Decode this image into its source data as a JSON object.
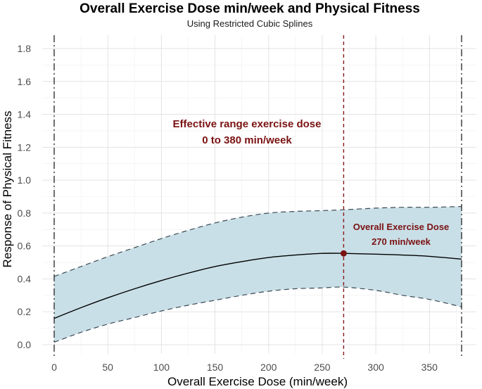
{
  "chart_data": {
    "type": "line",
    "title": "Overall Exercise Dose min/week and Physical Fitness",
    "subtitle": "Using Restricted Cubic Splines",
    "xlabel": "Overall Exercise Dose (min/week)",
    "ylabel": "Response of Physical Fitness",
    "xlim": [
      0,
      380
    ],
    "ylim": [
      0,
      1.8
    ],
    "x_ticks": [
      0,
      50,
      100,
      150,
      200,
      250,
      300,
      350
    ],
    "x_tick_labels": [
      "0",
      "50",
      "100",
      "150",
      "200",
      "250",
      "300",
      "350"
    ],
    "y_ticks": [
      0.0,
      0.2,
      0.4,
      0.6,
      0.8,
      1.0,
      1.2,
      1.4,
      1.6,
      1.8
    ],
    "y_tick_labels": [
      "0.0",
      "0.2",
      "0.4",
      "0.6",
      "0.8",
      "1.0",
      "1.2",
      "1.4",
      "1.6",
      "1.8"
    ],
    "grid": true,
    "x": [
      0,
      25,
      50,
      75,
      100,
      125,
      150,
      175,
      200,
      225,
      250,
      270,
      300,
      325,
      350,
      380
    ],
    "series": [
      {
        "name": "estimate",
        "style": "solid",
        "values": [
          0.16,
          0.225,
          0.285,
          0.34,
          0.39,
          0.435,
          0.475,
          0.505,
          0.53,
          0.545,
          0.555,
          0.555,
          0.55,
          0.545,
          0.537,
          0.52
        ]
      },
      {
        "name": "upper_ci",
        "style": "dashed",
        "values": [
          0.415,
          0.475,
          0.535,
          0.59,
          0.645,
          0.695,
          0.74,
          0.775,
          0.8,
          0.81,
          0.815,
          0.82,
          0.83,
          0.835,
          0.835,
          0.84
        ]
      },
      {
        "name": "lower_ci",
        "style": "dashed",
        "values": [
          0.015,
          0.075,
          0.125,
          0.165,
          0.205,
          0.24,
          0.27,
          0.3,
          0.325,
          0.34,
          0.345,
          0.35,
          0.33,
          0.3,
          0.275,
          0.23
        ]
      }
    ],
    "reference_lines": [
      {
        "x": 0,
        "style": "dashdot",
        "color": "#222222"
      },
      {
        "x": 380,
        "style": "dashdot",
        "color": "#222222"
      },
      {
        "x": 270,
        "style": "dashed",
        "color": "#8b1a1a"
      }
    ],
    "highlight_point": {
      "x": 270,
      "y": 0.555,
      "color": "#7a1212"
    },
    "annotations": {
      "effective_range_line1": "Effective range exercise dose",
      "effective_range_line2": "0 to 380 min/week",
      "dose_line1": "Overall Exercise Dose",
      "dose_line2": "270 min/week"
    },
    "colors": {
      "ribbon": "#c9dfe7",
      "line": "#000000",
      "ci_line": "#3c4a55",
      "grid": "#e3e3e3",
      "annotation": "#7a1212"
    }
  }
}
